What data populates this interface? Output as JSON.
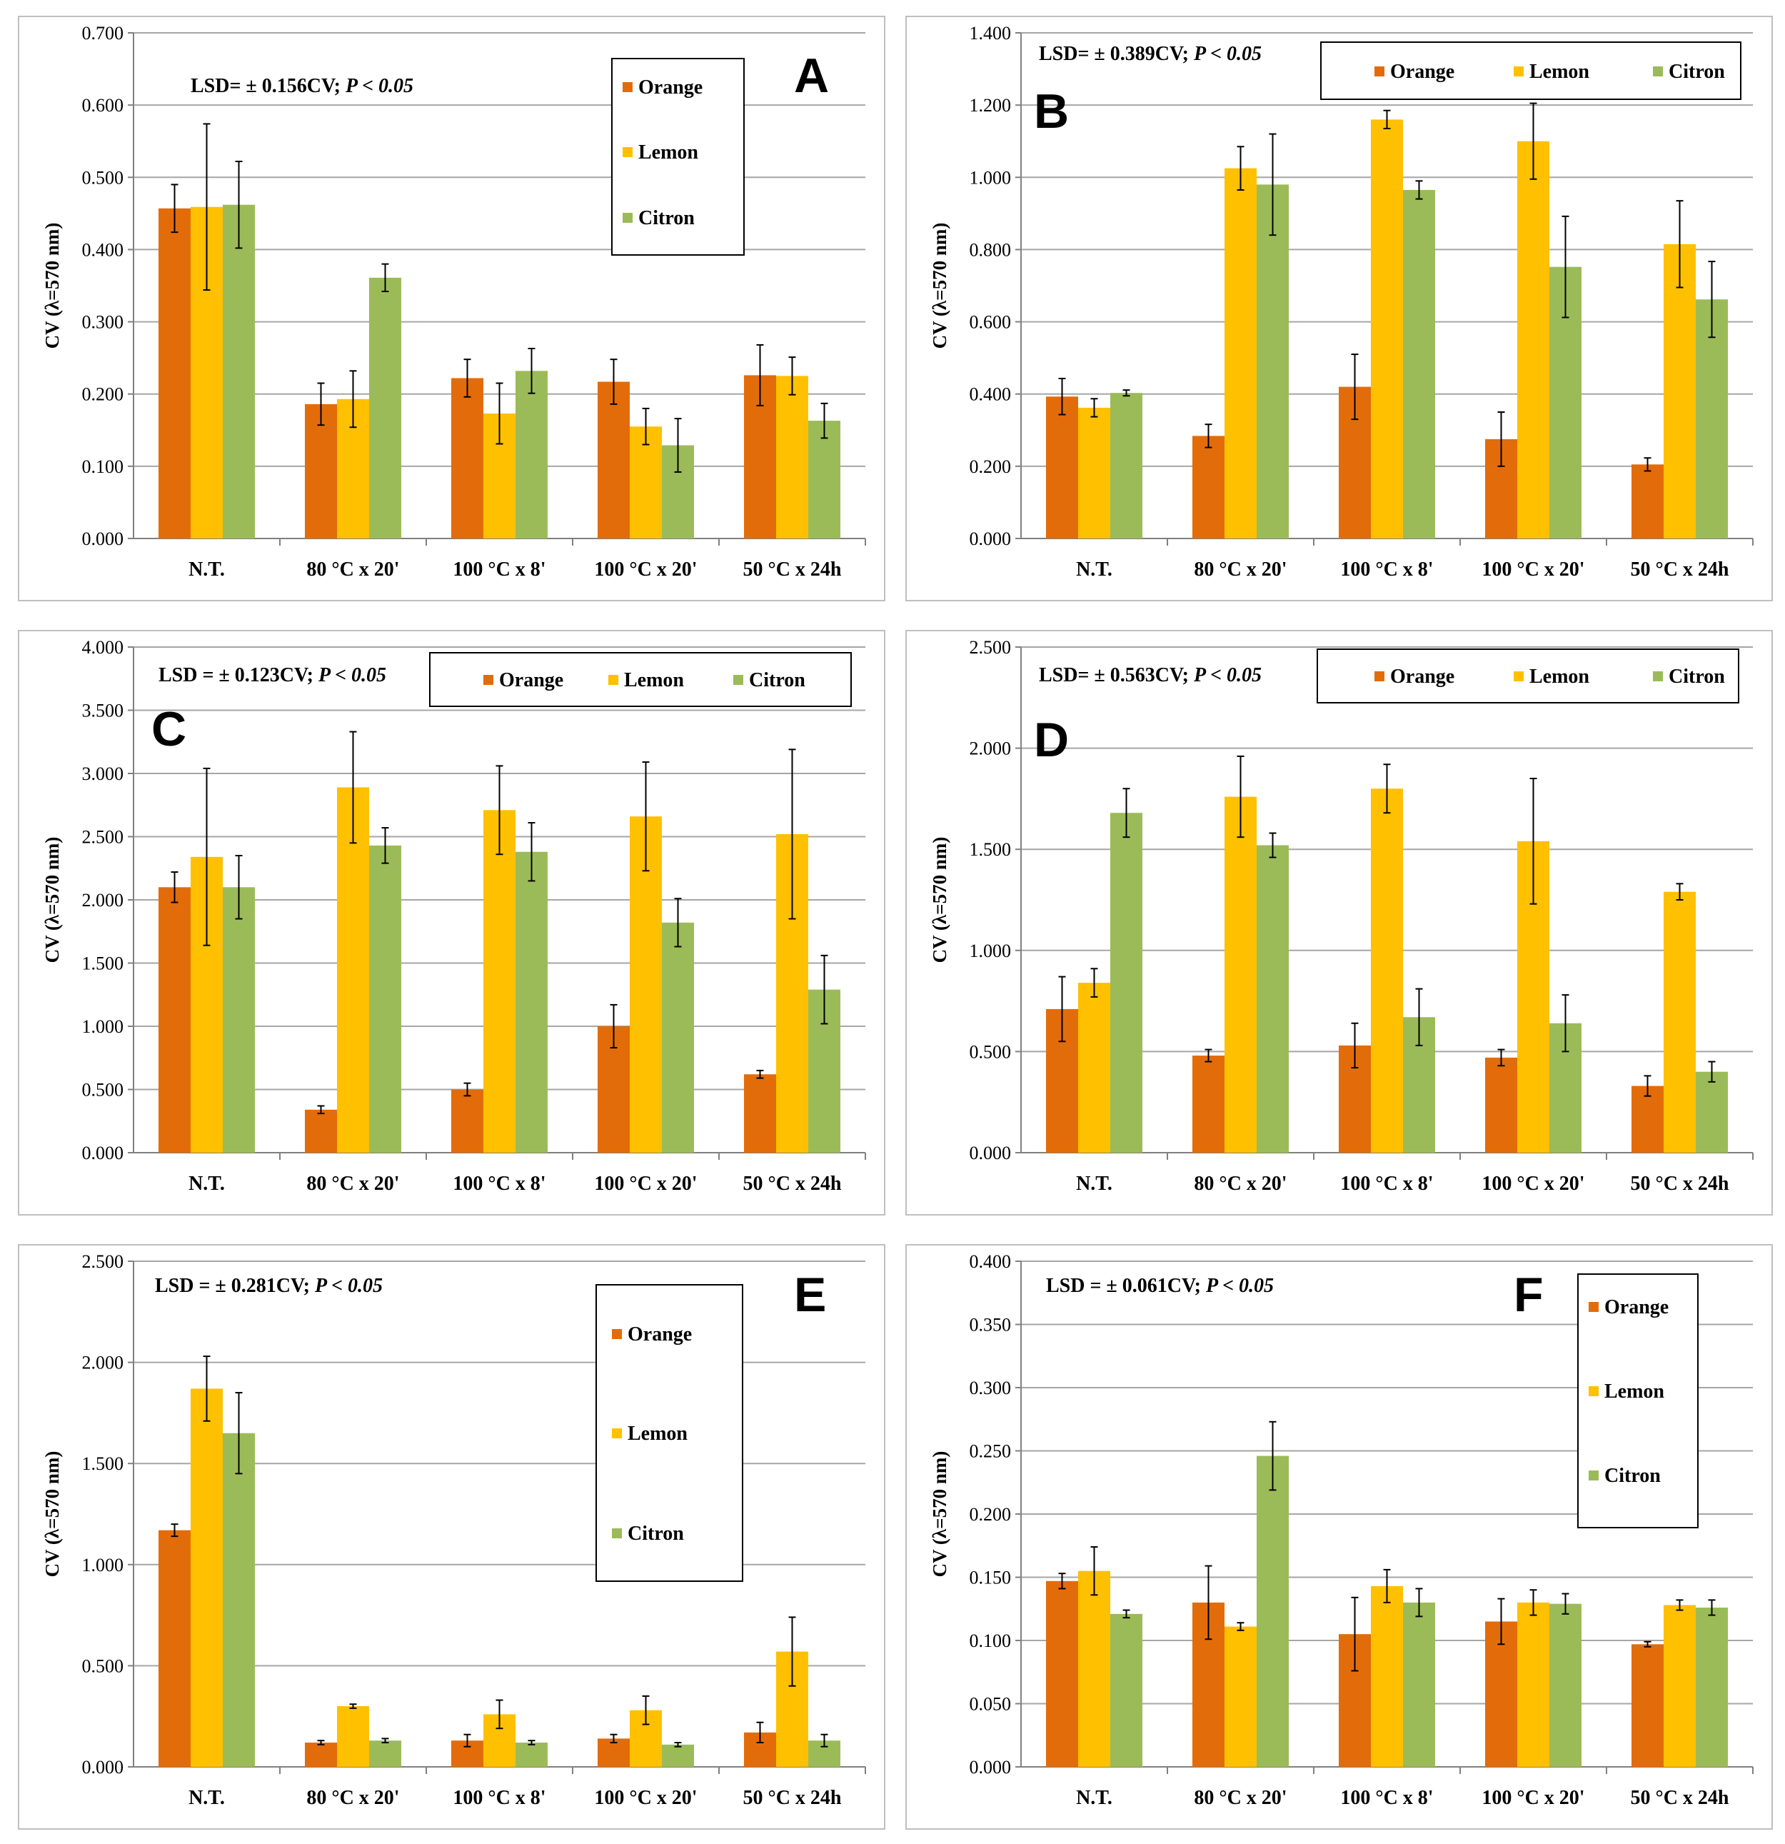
{
  "colors": {
    "Orange": "#E36C0A",
    "Lemon": "#FFC000",
    "Citron": "#9BBB59",
    "grid": "#a6a6a6",
    "error": "#000000"
  },
  "chart_data": [
    {
      "type": "bar",
      "panel_label": "A",
      "legend_layout": "vertical",
      "lsd_text": "LSD= ± 0.156CV;",
      "p_text": "P < 0.05",
      "ylabel": "CV (λ=570 nm)",
      "xlabel": "",
      "categories": [
        "N.T.",
        "80 °C x 20'",
        "100 °C x 8'",
        "100 °C x 20'",
        "50 °C x 24h"
      ],
      "ylim": [
        0,
        0.7
      ],
      "yticks": [
        0,
        0.1,
        0.2,
        0.3,
        0.4,
        0.5,
        0.6,
        0.7
      ],
      "yticklabels": [
        "0.000",
        "0.100",
        "0.200",
        "0.300",
        "0.400",
        "0.500",
        "0.600",
        "0.700"
      ],
      "series": [
        {
          "name": "Orange",
          "values": [
            0.457,
            0.186,
            0.222,
            0.217,
            0.226
          ],
          "errors": [
            0.033,
            0.029,
            0.026,
            0.031,
            0.042
          ]
        },
        {
          "name": "Lemon",
          "values": [
            0.459,
            0.193,
            0.173,
            0.155,
            0.225
          ],
          "errors": [
            0.115,
            0.039,
            0.042,
            0.025,
            0.026
          ]
        },
        {
          "name": "Citron",
          "values": [
            0.462,
            0.361,
            0.232,
            0.129,
            0.163
          ],
          "errors": [
            0.06,
            0.019,
            0.031,
            0.037,
            0.024
          ]
        }
      ]
    },
    {
      "type": "bar",
      "panel_label": "B",
      "legend_layout": "horizontal",
      "lsd_text": "LSD= ± 0.389CV;",
      "p_text": "P < 0.05",
      "ylabel": "CV (λ=570 nm)",
      "xlabel": "",
      "categories": [
        "N.T.",
        "80 °C x 20'",
        "100 °C x 8'",
        "100 °C x 20'",
        "50 °C x 24h"
      ],
      "ylim": [
        0,
        1.4
      ],
      "yticks": [
        0,
        0.2,
        0.4,
        0.6,
        0.8,
        1.0,
        1.2,
        1.4
      ],
      "yticklabels": [
        "0.000",
        "0.200",
        "0.400",
        "0.600",
        "0.800",
        "1.000",
        "1.200",
        "1.400"
      ],
      "series": [
        {
          "name": "Orange",
          "values": [
            0.393,
            0.284,
            0.42,
            0.275,
            0.205
          ],
          "errors": [
            0.05,
            0.032,
            0.09,
            0.075,
            0.018
          ]
        },
        {
          "name": "Lemon",
          "values": [
            0.362,
            1.025,
            1.16,
            1.1,
            0.815
          ],
          "errors": [
            0.025,
            0.06,
            0.025,
            0.105,
            0.12
          ]
        },
        {
          "name": "Citron",
          "values": [
            0.403,
            0.98,
            0.965,
            0.752,
            0.662
          ],
          "errors": [
            0.008,
            0.14,
            0.025,
            0.14,
            0.105
          ]
        }
      ]
    },
    {
      "type": "bar",
      "panel_label": "C",
      "legend_layout": "horizontal",
      "lsd_text": "LSD = ± 0.123CV;",
      "p_text": "P < 0.05",
      "ylabel": "CV (λ=570 nm)",
      "xlabel": "",
      "categories": [
        "N.T.",
        "80 °C x 20'",
        "100 °C x 8'",
        "100 °C x 20'",
        "50 °C x 24h"
      ],
      "ylim": [
        0,
        4.0
      ],
      "yticks": [
        0,
        0.5,
        1.0,
        1.5,
        2.0,
        2.5,
        3.0,
        3.5,
        4.0
      ],
      "yticklabels": [
        "0.000",
        "0.500",
        "1.000",
        "1.500",
        "2.000",
        "2.500",
        "3.000",
        "3.500",
        "4.000"
      ],
      "series": [
        {
          "name": "Orange",
          "values": [
            2.1,
            0.34,
            0.5,
            1.0,
            0.62
          ],
          "errors": [
            0.12,
            0.03,
            0.05,
            0.17,
            0.03
          ]
        },
        {
          "name": "Lemon",
          "values": [
            2.34,
            2.89,
            2.71,
            2.66,
            2.52
          ],
          "errors": [
            0.7,
            0.44,
            0.35,
            0.43,
            0.67
          ]
        },
        {
          "name": "Citron",
          "values": [
            2.1,
            2.43,
            2.38,
            1.82,
            1.29
          ],
          "errors": [
            0.25,
            0.14,
            0.23,
            0.19,
            0.27
          ]
        }
      ]
    },
    {
      "type": "bar",
      "panel_label": "D",
      "legend_layout": "horizontal",
      "lsd_text": "LSD= ± 0.563CV;",
      "p_text": "P < 0.05",
      "ylabel": "CV (λ=570 nm)",
      "xlabel": "",
      "categories": [
        "N.T.",
        "80 °C x 20'",
        "100 °C x 8'",
        "100 °C x 20'",
        "50 °C x 24h"
      ],
      "ylim": [
        0,
        2.5
      ],
      "yticks": [
        0,
        0.5,
        1.0,
        1.5,
        2.0,
        2.5
      ],
      "yticklabels": [
        "0.000",
        "0.500",
        "1.000",
        "1.500",
        "2.000",
        "2.500"
      ],
      "series": [
        {
          "name": "Orange",
          "values": [
            0.71,
            0.48,
            0.53,
            0.47,
            0.33
          ],
          "errors": [
            0.16,
            0.03,
            0.11,
            0.04,
            0.05
          ]
        },
        {
          "name": "Lemon",
          "values": [
            0.84,
            1.76,
            1.8,
            1.54,
            1.29
          ],
          "errors": [
            0.07,
            0.2,
            0.12,
            0.31,
            0.04
          ]
        },
        {
          "name": "Citron",
          "values": [
            1.68,
            1.52,
            0.67,
            0.64,
            0.4
          ],
          "errors": [
            0.12,
            0.06,
            0.14,
            0.14,
            0.05
          ]
        }
      ]
    },
    {
      "type": "bar",
      "panel_label": "E",
      "legend_layout": "vertical",
      "lsd_text": "LSD = ± 0.281CV;",
      "p_text": "P < 0.05",
      "ylabel": "CV (λ=570 nm)",
      "xlabel": "",
      "categories": [
        "N.T.",
        "80 °C x 20'",
        "100 °C x 8'",
        "100 °C x 20'",
        "50 °C x 24h"
      ],
      "ylim": [
        0,
        2.5
      ],
      "yticks": [
        0,
        0.5,
        1.0,
        1.5,
        2.0,
        2.5
      ],
      "yticklabels": [
        "0.000",
        "0.500",
        "1.000",
        "1.500",
        "2.000",
        "2.500"
      ],
      "series": [
        {
          "name": "Orange",
          "values": [
            1.17,
            0.12,
            0.13,
            0.14,
            0.17
          ],
          "errors": [
            0.03,
            0.01,
            0.03,
            0.02,
            0.05
          ]
        },
        {
          "name": "Lemon",
          "values": [
            1.87,
            0.3,
            0.26,
            0.28,
            0.57
          ],
          "errors": [
            0.16,
            0.01,
            0.07,
            0.07,
            0.17
          ]
        },
        {
          "name": "Citron",
          "values": [
            1.65,
            0.13,
            0.12,
            0.11,
            0.13
          ],
          "errors": [
            0.2,
            0.01,
            0.01,
            0.01,
            0.03
          ]
        }
      ]
    },
    {
      "type": "bar",
      "panel_label": "F",
      "legend_layout": "vertical",
      "lsd_text": "LSD = ± 0.061CV;",
      "p_text": "P < 0.05",
      "ylabel": "CV (λ=570 nm)",
      "xlabel": "",
      "categories": [
        "N.T.",
        "80 °C x 20'",
        "100 °C x 8'",
        "100 °C x 20'",
        "50 °C x 24h"
      ],
      "ylim": [
        0,
        0.4
      ],
      "yticks": [
        0,
        0.05,
        0.1,
        0.15,
        0.2,
        0.25,
        0.3,
        0.35,
        0.4
      ],
      "yticklabels": [
        "0.000",
        "0.050",
        "0.100",
        "0.150",
        "0.200",
        "0.250",
        "0.300",
        "0.350",
        "0.400"
      ],
      "series": [
        {
          "name": "Orange",
          "values": [
            0.147,
            0.13,
            0.105,
            0.115,
            0.097
          ],
          "errors": [
            0.006,
            0.029,
            0.029,
            0.018,
            0.002
          ]
        },
        {
          "name": "Lemon",
          "values": [
            0.155,
            0.111,
            0.143,
            0.13,
            0.128
          ],
          "errors": [
            0.019,
            0.003,
            0.013,
            0.01,
            0.004
          ]
        },
        {
          "name": "Citron",
          "values": [
            0.121,
            0.246,
            0.13,
            0.129,
            0.126
          ],
          "errors": [
            0.003,
            0.027,
            0.011,
            0.008,
            0.006
          ]
        }
      ]
    }
  ]
}
